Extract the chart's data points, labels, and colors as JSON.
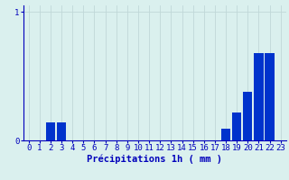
{
  "hours": [
    0,
    1,
    2,
    3,
    4,
    5,
    6,
    7,
    8,
    9,
    10,
    11,
    12,
    13,
    14,
    15,
    16,
    17,
    18,
    19,
    20,
    21,
    22,
    23
  ],
  "values": [
    0,
    0,
    0.14,
    0.14,
    0,
    0,
    0,
    0,
    0,
    0,
    0,
    0,
    0,
    0,
    0,
    0,
    0,
    0,
    0.09,
    0.22,
    0.38,
    0.68,
    0.68,
    0
  ],
  "bar_color": "#0033cc",
  "background_color": "#daf0ee",
  "grid_color": "#c0d8d8",
  "axis_color": "#0000bb",
  "xlabel": "Précipitations 1h ( mm )",
  "ylim": [
    0,
    1.05
  ],
  "yticks": [
    0,
    1
  ],
  "tick_fontsize": 6.5,
  "xlabel_fontsize": 7.5
}
